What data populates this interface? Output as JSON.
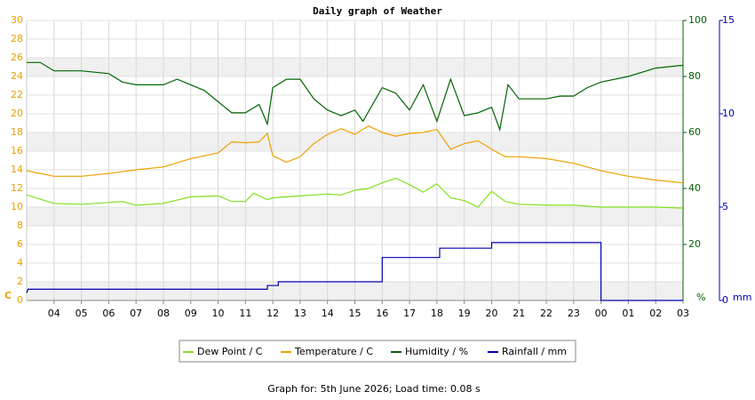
{
  "chart_data": {
    "type": "line",
    "title": "Daily graph of Weather",
    "footer": "Graph for: 5th June 2026; Load time: 0.08 s",
    "xlim": [
      0,
      24
    ],
    "xticks": [
      {
        "value": 1,
        "label": "04"
      },
      {
        "value": 2,
        "label": "05"
      },
      {
        "value": 3,
        "label": "06"
      },
      {
        "value": 4,
        "label": "07"
      },
      {
        "value": 5,
        "label": "08"
      },
      {
        "value": 6,
        "label": "09"
      },
      {
        "value": 7,
        "label": "10"
      },
      {
        "value": 8,
        "label": "11"
      },
      {
        "value": 9,
        "label": "12"
      },
      {
        "value": 10,
        "label": "13"
      },
      {
        "value": 11,
        "label": "14"
      },
      {
        "value": 12,
        "label": "15"
      },
      {
        "value": 13,
        "label": "16"
      },
      {
        "value": 14,
        "label": "17"
      },
      {
        "value": 15,
        "label": "18"
      },
      {
        "value": 16,
        "label": "19"
      },
      {
        "value": 17,
        "label": "20"
      },
      {
        "value": 18,
        "label": "21"
      },
      {
        "value": 19,
        "label": "22"
      },
      {
        "value": 20,
        "label": "23"
      },
      {
        "value": 21,
        "label": "00"
      },
      {
        "value": 22,
        "label": "01"
      },
      {
        "value": 23,
        "label": "02"
      },
      {
        "value": 24,
        "label": "03"
      }
    ],
    "ylim": [
      0,
      30
    ],
    "yticks": [
      0,
      2,
      4,
      6,
      8,
      10,
      12,
      14,
      16,
      18,
      20,
      22,
      24,
      26,
      28,
      30
    ],
    "y_unit": "C",
    "y_color": "#e8a000",
    "y2lim": [
      0,
      100
    ],
    "y2ticks": [
      20,
      40,
      60,
      80,
      100
    ],
    "y2_unit": "%",
    "y2_color": "#006400",
    "y3lim": [
      0,
      15
    ],
    "y3ticks": [
      0,
      5,
      10,
      15
    ],
    "y3_unit": "mm",
    "y3_color": "#0000b4",
    "grid": true,
    "series": [
      {
        "name": "Dew Point / C",
        "color": "#80e020",
        "axis": "y",
        "x": [
          0,
          1,
          2,
          3,
          3.5,
          4,
          5,
          6,
          7,
          7.5,
          8,
          8.3,
          8.8,
          9,
          10,
          11,
          11.5,
          12,
          12.5,
          13,
          13.5,
          14,
          14.5,
          15,
          15.5,
          16,
          16.5,
          17,
          17.5,
          18,
          19,
          20,
          21,
          22,
          23,
          24
        ],
        "values": [
          11.3,
          10.4,
          10.3,
          10.5,
          10.6,
          10.2,
          10.4,
          11.1,
          11.2,
          10.6,
          10.6,
          11.5,
          10.8,
          11.0,
          11.2,
          11.4,
          11.3,
          11.8,
          12.0,
          12.6,
          13.1,
          12.4,
          11.6,
          12.5,
          11.0,
          10.7,
          10.0,
          11.7,
          10.6,
          10.3,
          10.2,
          10.2,
          10.0,
          10.0,
          10.0,
          9.9
        ]
      },
      {
        "name": "Temperature / C",
        "color": "#f0a000",
        "axis": "y",
        "x": [
          0,
          1,
          2,
          3,
          4,
          5,
          6,
          7,
          7.5,
          8,
          8.5,
          8.8,
          9,
          9.5,
          10,
          10.5,
          11,
          11.5,
          12,
          12.5,
          13,
          13.5,
          14,
          14.5,
          15,
          15.5,
          16,
          16.5,
          17,
          17.5,
          18,
          19,
          20,
          21,
          22,
          23,
          24
        ],
        "values": [
          13.9,
          13.3,
          13.3,
          13.6,
          14.0,
          14.3,
          15.2,
          15.8,
          17.0,
          16.9,
          17.0,
          17.9,
          15.5,
          14.8,
          15.4,
          16.8,
          17.8,
          18.4,
          17.8,
          18.7,
          18.0,
          17.6,
          17.9,
          18.0,
          18.3,
          16.2,
          16.8,
          17.1,
          16.2,
          15.4,
          15.4,
          15.2,
          14.7,
          13.9,
          13.3,
          12.9,
          12.6
        ]
      },
      {
        "name": "Humidity / %",
        "color": "#006400",
        "axis": "y2",
        "x": [
          0,
          0.5,
          1,
          2,
          3,
          3.5,
          4,
          5,
          5.5,
          6,
          6.5,
          7,
          7.5,
          8,
          8.5,
          8.8,
          9,
          9.5,
          10,
          10.5,
          11,
          11.5,
          12,
          12.3,
          13,
          13.5,
          14,
          14.5,
          15,
          15.5,
          16,
          16.5,
          17,
          17.3,
          17.6,
          18,
          18.5,
          19,
          19.5,
          20,
          20.5,
          21,
          22,
          23,
          24
        ],
        "values": [
          85,
          85,
          82,
          82,
          81,
          78,
          77,
          77,
          79,
          77,
          75,
          71,
          67,
          67,
          70,
          63,
          76,
          79,
          79,
          72,
          68,
          66,
          68,
          64,
          76,
          74,
          68,
          77,
          64,
          79,
          66,
          67,
          69,
          61,
          77,
          72,
          72,
          72,
          73,
          73,
          76,
          78,
          80,
          83,
          84
        ]
      },
      {
        "name": "Rainfall / mm",
        "color": "#0000b4",
        "axis": "y3",
        "x": [
          0,
          0.05,
          8.8,
          8.8,
          9.2,
          9.2,
          13,
          13,
          15.1,
          15.1,
          17,
          17,
          21,
          21,
          24
        ],
        "values": [
          0.4,
          0.6,
          0.6,
          0.8,
          0.8,
          1.0,
          1.0,
          2.3,
          2.3,
          2.8,
          2.8,
          3.1,
          3.1,
          0,
          0
        ]
      }
    ]
  }
}
